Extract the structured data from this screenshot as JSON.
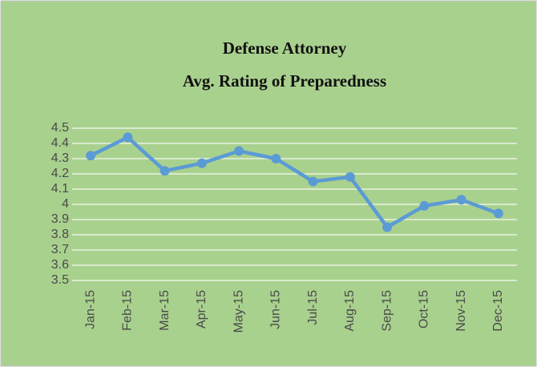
{
  "chart_data": {
    "type": "line",
    "title": "Defense Attorney",
    "subtitle": "Avg. Rating of Preparedness",
    "categories": [
      "Jan-15",
      "Feb-15",
      "Mar-15",
      "Apr-15",
      "May-15",
      "Jun-15",
      "Jul-15",
      "Aug-15",
      "Sep-15",
      "Oct-15",
      "Nov-15",
      "Dec-15"
    ],
    "series": [
      {
        "color": "#5b9bd5",
        "values": [
          4.32,
          4.44,
          4.22,
          4.27,
          4.35,
          4.3,
          4.15,
          4.18,
          3.85,
          3.99,
          4.03,
          3.94
        ]
      }
    ],
    "ylim": [
      3.5,
      4.5
    ],
    "yticks": [
      3.5,
      3.6,
      3.7,
      3.8,
      3.9,
      4,
      4.1,
      4.2,
      4.3,
      4.4,
      4.5
    ],
    "grid": true
  }
}
